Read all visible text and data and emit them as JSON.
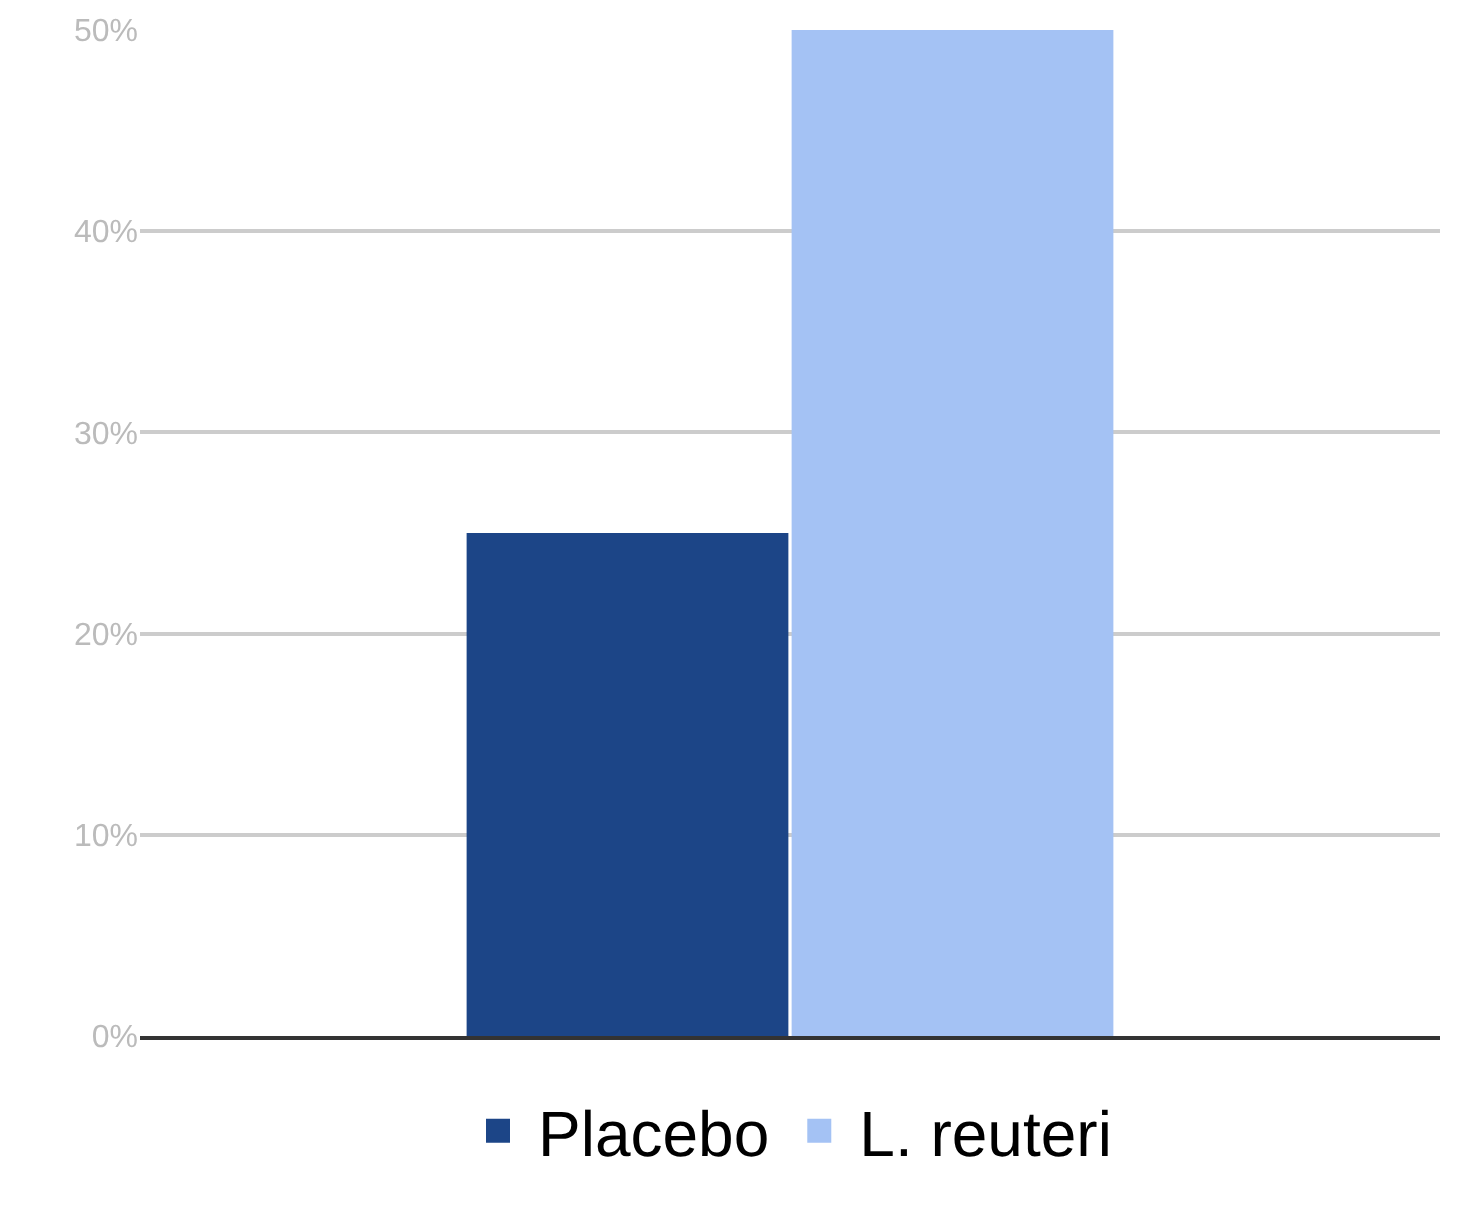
{
  "chart_data": {
    "type": "bar",
    "categories": [
      null
    ],
    "series": [
      {
        "name": "Placebo",
        "color": "#1c4587",
        "values": [
          25
        ]
      },
      {
        "name": "L. reuteri",
        "color": "#a4c2f4",
        "values": [
          50
        ]
      }
    ],
    "ylim": [
      0,
      50
    ],
    "yticks": [
      {
        "value": 0,
        "label": "0%"
      },
      {
        "value": 10,
        "label": "10%"
      },
      {
        "value": 20,
        "label": "20%"
      },
      {
        "value": 30,
        "label": "30%"
      },
      {
        "value": 40,
        "label": "40%"
      },
      {
        "value": 50,
        "label": "50%"
      }
    ],
    "grid": "y",
    "legend": "bottom"
  }
}
